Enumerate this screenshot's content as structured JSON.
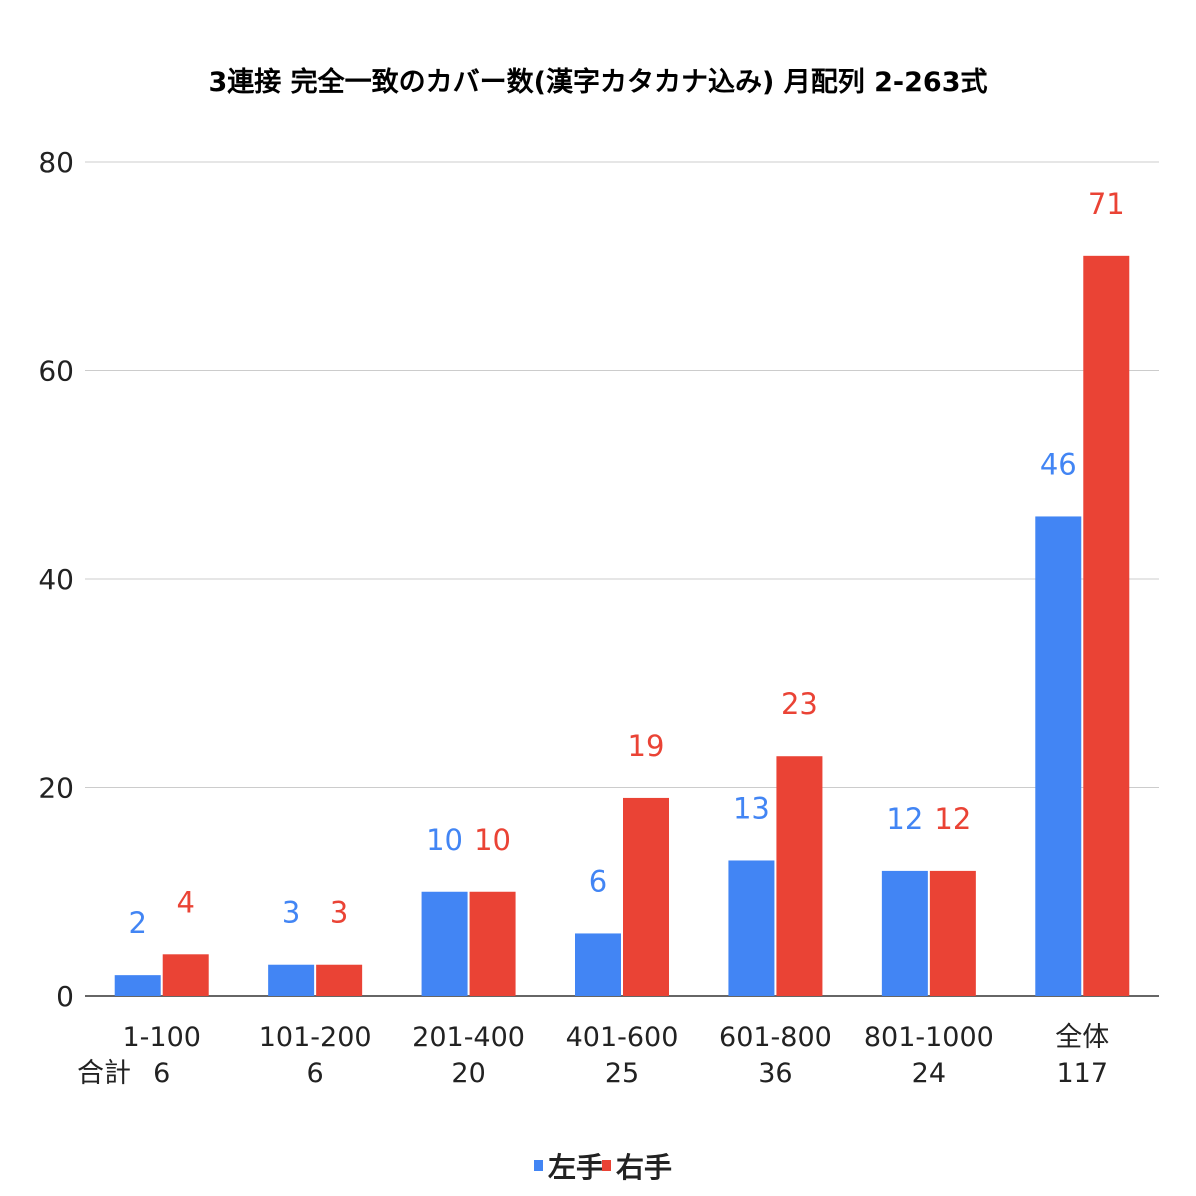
{
  "chart_data": {
    "type": "bar",
    "title": "3連接 完全一致のカバー数(漢字カタカナ込み) 月配列 2-263式",
    "categories": [
      "1-100",
      "101-200",
      "201-400",
      "401-600",
      "601-800",
      "801-1000",
      "全体"
    ],
    "totals_label": "合計",
    "totals": [
      "6",
      "6",
      "20",
      "25",
      "36",
      "24",
      "117"
    ],
    "series": [
      {
        "name": "左手",
        "color": "#4285f4",
        "values": [
          2,
          3,
          10,
          6,
          13,
          12,
          46
        ]
      },
      {
        "name": "右手",
        "color": "#ea4335",
        "values": [
          4,
          3,
          10,
          19,
          23,
          12,
          71
        ]
      }
    ],
    "ylim": [
      0,
      80
    ],
    "yticks": [
      0,
      20,
      40,
      60,
      80
    ],
    "grid": true,
    "legend_position": "bottom",
    "data_labels": true
  }
}
